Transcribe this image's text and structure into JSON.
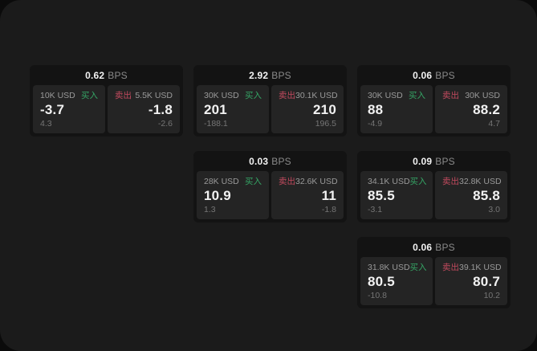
{
  "labels": {
    "bps_unit": "BPS",
    "buy": "买入",
    "sell": "卖出"
  },
  "colors": {
    "buy_green": "#35a565",
    "sell_red": "#c24a5e",
    "surface": "#1b1b1b",
    "card_background": "#131313",
    "pane_background": "#242424"
  },
  "cards": [
    {
      "bps": "0.62",
      "buy": {
        "notional": "10K USD",
        "price": "-3.7",
        "delta": "4.3"
      },
      "sell": {
        "notional": "5.5K USD",
        "price": "-1.8",
        "delta": "-2.6"
      }
    },
    {
      "bps": "2.92",
      "buy": {
        "notional": "30K USD",
        "price": "201",
        "delta": "-188.1"
      },
      "sell": {
        "notional": "30.1K USD",
        "price": "210",
        "delta": "196.5"
      }
    },
    {
      "bps": "0.06",
      "buy": {
        "notional": "30K USD",
        "price": "88",
        "delta": "-4.9"
      },
      "sell": {
        "notional": "30K USD",
        "price": "88.2",
        "delta": "4.7"
      }
    },
    {
      "bps": "0.03",
      "buy": {
        "notional": "28K USD",
        "price": "10.9",
        "delta": "1.3"
      },
      "sell": {
        "notional": "32.6K USD",
        "price": "11",
        "delta": "-1.8"
      }
    },
    {
      "bps": "0.09",
      "buy": {
        "notional": "34.1K USD",
        "price": "85.5",
        "delta": "-3.1"
      },
      "sell": {
        "notional": "32.8K USD",
        "price": "85.8",
        "delta": "3.0"
      }
    },
    {
      "bps": "0.06",
      "buy": {
        "notional": "31.8K USD",
        "price": "80.5",
        "delta": "-10.8"
      },
      "sell": {
        "notional": "39.1K USD",
        "price": "80.7",
        "delta": "10.2"
      }
    }
  ]
}
